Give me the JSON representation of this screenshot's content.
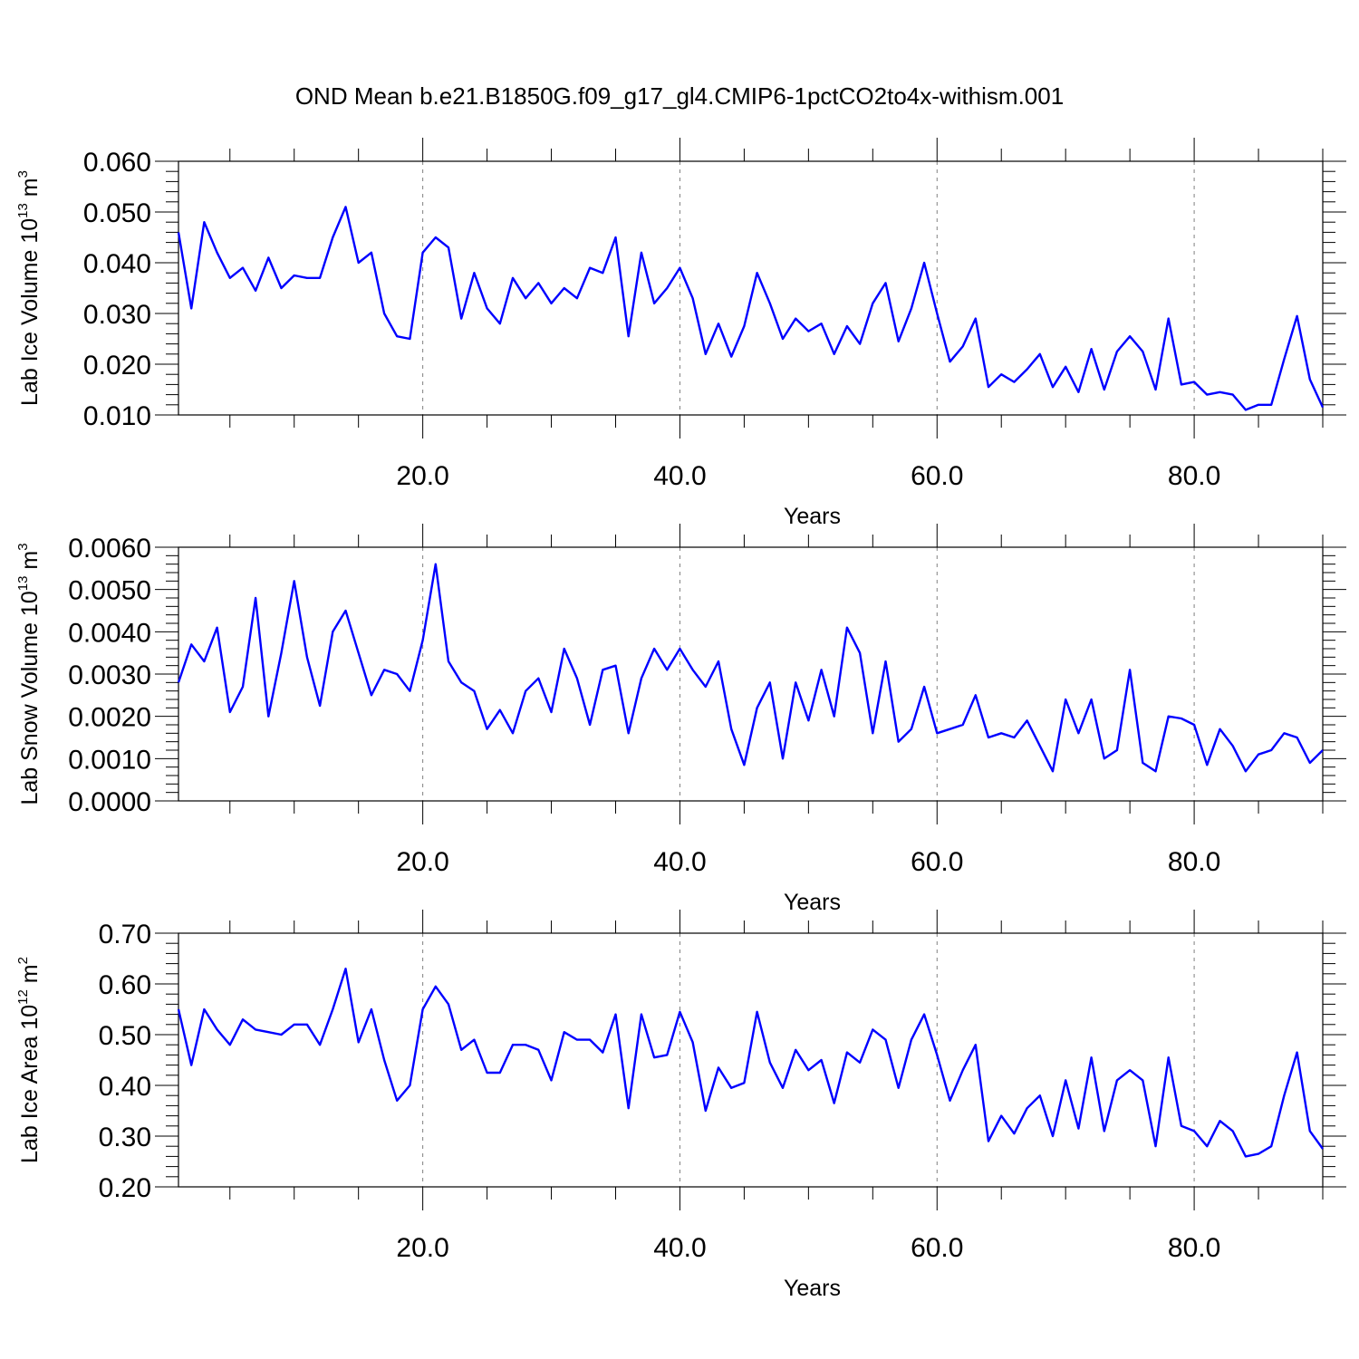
{
  "title": "OND Mean b.e21.B1850G.f09_g17_gl4.CMIP6-1pctCO2to4x-withism.001",
  "chart_data": [
    {
      "type": "line",
      "xlabel": "Years",
      "ylabel_parts": [
        "Lab Ice Volume 10",
        "13",
        " m",
        "3"
      ],
      "xlim": [
        1,
        90
      ],
      "ylim": [
        0.01,
        0.06
      ],
      "yticks": [
        "0.010",
        "0.020",
        "0.030",
        "0.040",
        "0.050",
        "0.060"
      ],
      "xticks": [
        "20.0",
        "40.0",
        "60.0",
        "80.0"
      ],
      "grid": "vertical dashed at major x ticks",
      "color": "#0000ff",
      "x": [
        1,
        2,
        3,
        4,
        5,
        6,
        7,
        8,
        9,
        10,
        11,
        12,
        13,
        14,
        15,
        16,
        17,
        18,
        19,
        20,
        21,
        22,
        23,
        24,
        25,
        26,
        27,
        28,
        29,
        30,
        31,
        32,
        33,
        34,
        35,
        36,
        37,
        38,
        39,
        40,
        41,
        42,
        43,
        44,
        45,
        46,
        47,
        48,
        49,
        50,
        51,
        52,
        53,
        54,
        55,
        56,
        57,
        58,
        59,
        60,
        61,
        62,
        63,
        64,
        65,
        66,
        67,
        68,
        69,
        70,
        71,
        72,
        73,
        74,
        75,
        76,
        77,
        78,
        79,
        80,
        81,
        82,
        83,
        84,
        85,
        86,
        87,
        88,
        89,
        90
      ],
      "values": [
        0.046,
        0.031,
        0.048,
        0.042,
        0.037,
        0.039,
        0.0345,
        0.041,
        0.035,
        0.0375,
        0.037,
        0.037,
        0.045,
        0.051,
        0.04,
        0.042,
        0.03,
        0.0255,
        0.025,
        0.042,
        0.045,
        0.043,
        0.029,
        0.038,
        0.031,
        0.028,
        0.037,
        0.033,
        0.036,
        0.032,
        0.035,
        0.033,
        0.039,
        0.038,
        0.045,
        0.0255,
        0.042,
        0.032,
        0.035,
        0.039,
        0.033,
        0.022,
        0.028,
        0.0215,
        0.0275,
        0.038,
        0.032,
        0.025,
        0.029,
        0.0265,
        0.028,
        0.022,
        0.0275,
        0.024,
        0.032,
        0.036,
        0.0245,
        0.031,
        0.04,
        0.03,
        0.0205,
        0.0235,
        0.029,
        0.0155,
        0.018,
        0.0165,
        0.019,
        0.022,
        0.0155,
        0.0195,
        0.0145,
        0.023,
        0.015,
        0.0225,
        0.0255,
        0.0225,
        0.015,
        0.029,
        0.016,
        0.0165,
        0.014,
        0.0145,
        0.014,
        0.011,
        0.012,
        0.012,
        0.021,
        0.0295,
        0.017,
        0.0115
      ]
    },
    {
      "type": "line",
      "xlabel": "Years",
      "ylabel_parts": [
        "Lab Snow Volume 10",
        "13",
        " m",
        "3"
      ],
      "xlim": [
        1,
        90
      ],
      "ylim": [
        0.0,
        0.006
      ],
      "yticks": [
        "0.0000",
        "0.0010",
        "0.0020",
        "0.0030",
        "0.0040",
        "0.0050",
        "0.0060"
      ],
      "xticks": [
        "20.0",
        "40.0",
        "60.0",
        "80.0"
      ],
      "grid": "vertical dashed at major x ticks",
      "color": "#0000ff",
      "x": [
        1,
        2,
        3,
        4,
        5,
        6,
        7,
        8,
        9,
        10,
        11,
        12,
        13,
        14,
        15,
        16,
        17,
        18,
        19,
        20,
        21,
        22,
        23,
        24,
        25,
        26,
        27,
        28,
        29,
        30,
        31,
        32,
        33,
        34,
        35,
        36,
        37,
        38,
        39,
        40,
        41,
        42,
        43,
        44,
        45,
        46,
        47,
        48,
        49,
        50,
        51,
        52,
        53,
        54,
        55,
        56,
        57,
        58,
        59,
        60,
        61,
        62,
        63,
        64,
        65,
        66,
        67,
        68,
        69,
        70,
        71,
        72,
        73,
        74,
        75,
        76,
        77,
        78,
        79,
        80,
        81,
        82,
        83,
        84,
        85,
        86,
        87,
        88,
        89,
        90
      ],
      "values": [
        0.0028,
        0.0037,
        0.0033,
        0.0041,
        0.0021,
        0.0027,
        0.0048,
        0.002,
        0.0035,
        0.0052,
        0.0034,
        0.00225,
        0.004,
        0.0045,
        0.0035,
        0.0025,
        0.0031,
        0.003,
        0.0026,
        0.0038,
        0.0056,
        0.0033,
        0.0028,
        0.0026,
        0.0017,
        0.00215,
        0.0016,
        0.0026,
        0.0029,
        0.0021,
        0.0036,
        0.0029,
        0.0018,
        0.0031,
        0.0032,
        0.0016,
        0.0029,
        0.0036,
        0.0031,
        0.0036,
        0.0031,
        0.0027,
        0.0033,
        0.0017,
        0.00085,
        0.0022,
        0.0028,
        0.001,
        0.0028,
        0.0019,
        0.0031,
        0.002,
        0.0041,
        0.0035,
        0.0016,
        0.0033,
        0.0014,
        0.0017,
        0.0027,
        0.0016,
        0.0017,
        0.0018,
        0.0025,
        0.0015,
        0.0016,
        0.0015,
        0.0019,
        0.0013,
        0.0007,
        0.0024,
        0.0016,
        0.0024,
        0.001,
        0.0012,
        0.0031,
        0.0009,
        0.0007,
        0.002,
        0.00195,
        0.0018,
        0.00085,
        0.0017,
        0.0013,
        0.0007,
        0.0011,
        0.0012,
        0.0016,
        0.0015,
        0.0009,
        0.0012
      ]
    },
    {
      "type": "line",
      "xlabel": "Years",
      "ylabel_parts": [
        "Lab Ice Area 10",
        "12",
        " m",
        "2"
      ],
      "xlim": [
        1,
        90
      ],
      "ylim": [
        0.2,
        0.7
      ],
      "yticks": [
        "0.20",
        "0.30",
        "0.40",
        "0.50",
        "0.60",
        "0.70"
      ],
      "xticks": [
        "20.0",
        "40.0",
        "60.0",
        "80.0"
      ],
      "grid": "vertical dashed at major x ticks",
      "color": "#0000ff",
      "x": [
        1,
        2,
        3,
        4,
        5,
        6,
        7,
        8,
        9,
        10,
        11,
        12,
        13,
        14,
        15,
        16,
        17,
        18,
        19,
        20,
        21,
        22,
        23,
        24,
        25,
        26,
        27,
        28,
        29,
        30,
        31,
        32,
        33,
        34,
        35,
        36,
        37,
        38,
        39,
        40,
        41,
        42,
        43,
        44,
        45,
        46,
        47,
        48,
        49,
        50,
        51,
        52,
        53,
        54,
        55,
        56,
        57,
        58,
        59,
        60,
        61,
        62,
        63,
        64,
        65,
        66,
        67,
        68,
        69,
        70,
        71,
        72,
        73,
        74,
        75,
        76,
        77,
        78,
        79,
        80,
        81,
        82,
        83,
        84,
        85,
        86,
        87,
        88,
        89,
        90
      ],
      "values": [
        0.55,
        0.44,
        0.55,
        0.51,
        0.48,
        0.53,
        0.51,
        0.505,
        0.5,
        0.52,
        0.52,
        0.48,
        0.55,
        0.63,
        0.485,
        0.55,
        0.45,
        0.37,
        0.4,
        0.55,
        0.595,
        0.56,
        0.47,
        0.49,
        0.425,
        0.425,
        0.48,
        0.48,
        0.47,
        0.41,
        0.505,
        0.49,
        0.49,
        0.465,
        0.54,
        0.355,
        0.54,
        0.455,
        0.46,
        0.545,
        0.485,
        0.35,
        0.435,
        0.395,
        0.405,
        0.545,
        0.445,
        0.395,
        0.47,
        0.43,
        0.45,
        0.365,
        0.465,
        0.445,
        0.51,
        0.49,
        0.395,
        0.49,
        0.54,
        0.46,
        0.37,
        0.43,
        0.48,
        0.29,
        0.34,
        0.305,
        0.355,
        0.38,
        0.3,
        0.41,
        0.315,
        0.455,
        0.31,
        0.41,
        0.43,
        0.41,
        0.28,
        0.455,
        0.32,
        0.31,
        0.28,
        0.33,
        0.31,
        0.26,
        0.265,
        0.28,
        0.38,
        0.465,
        0.31,
        0.275
      ]
    }
  ]
}
